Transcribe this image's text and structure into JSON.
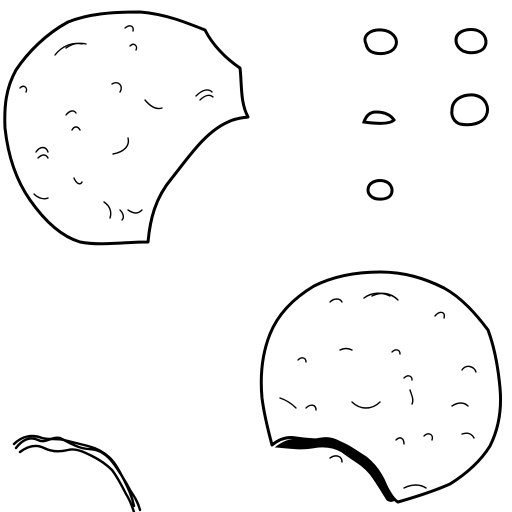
{
  "scene": {
    "colors": {
      "background": "#ffffff",
      "line": "#000000"
    },
    "items": [
      {
        "name": "bitten-cookie-top-left"
      },
      {
        "name": "crumbs"
      },
      {
        "name": "bitten-cookie-bottom-right"
      },
      {
        "name": "cookie-edge-fragment"
      }
    ]
  }
}
